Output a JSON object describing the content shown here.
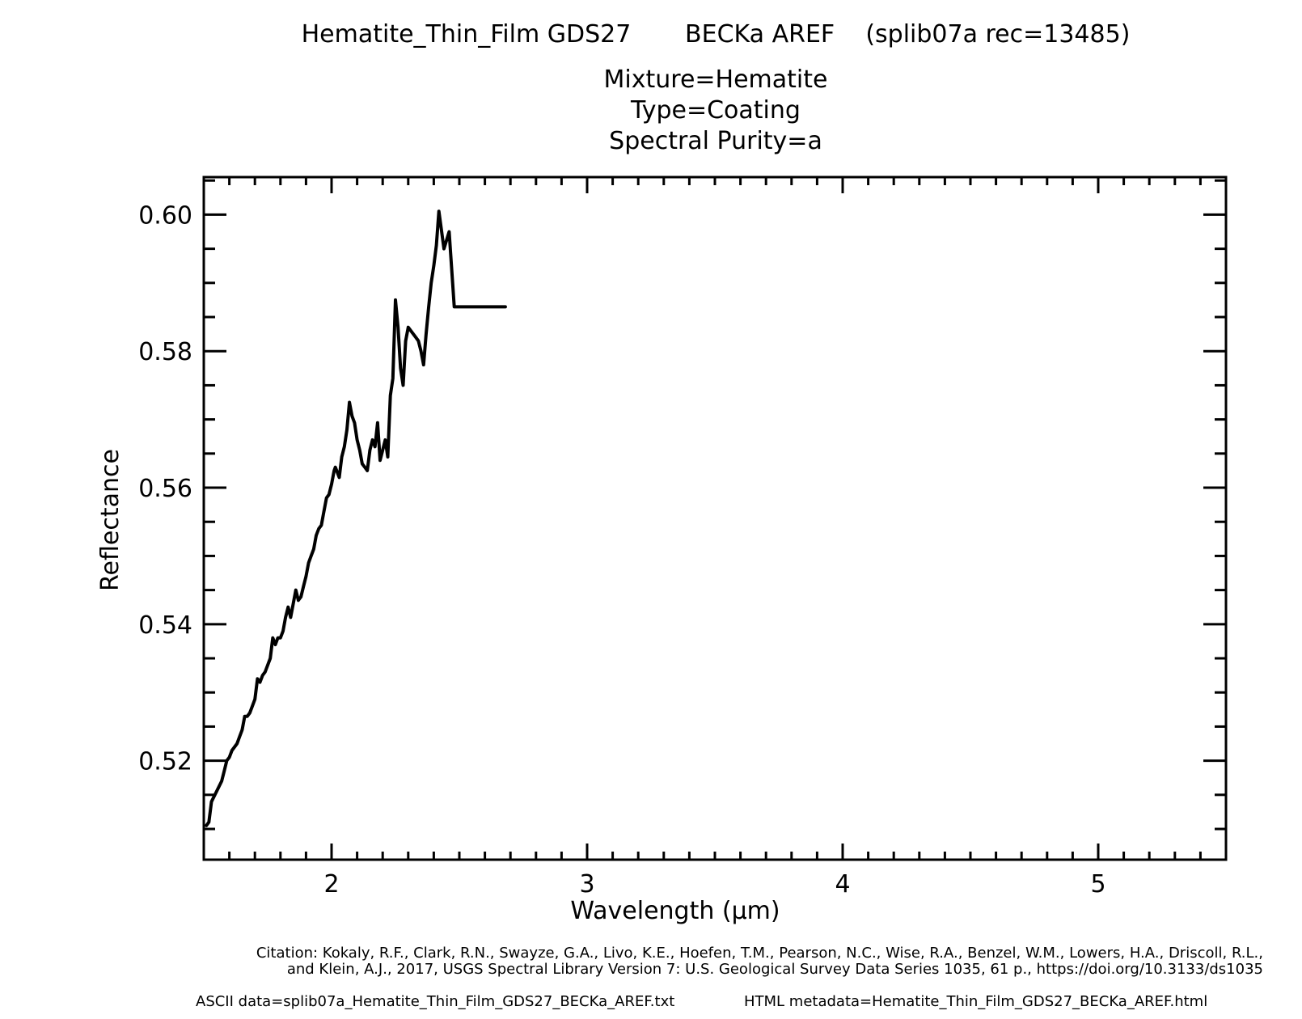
{
  "chart_data": {
    "type": "line",
    "title": "Hematite_Thin_Film GDS27       BECKa AREF    (splib07a rec=13485)",
    "subtitle_lines": [
      "Mixture=Hematite",
      "Type=Coating",
      "Spectral Purity=a"
    ],
    "xlabel": "Wavelength (μm)",
    "ylabel": "Reflectance",
    "xlim": [
      1.5,
      5.5
    ],
    "ylim": [
      0.5055,
      0.6055
    ],
    "x_ticks": [
      2,
      3,
      4,
      5
    ],
    "x_tick_labels": [
      "2",
      "3",
      "4",
      "5"
    ],
    "y_ticks": [
      0.52,
      0.54,
      0.56,
      0.58,
      0.6
    ],
    "y_tick_labels": [
      "0.52",
      "0.54",
      "0.56",
      "0.58",
      "0.60"
    ],
    "grid": false,
    "series": [
      {
        "color": "#000000",
        "x": [
          1.51,
          1.52,
          1.53,
          1.55,
          1.57,
          1.58,
          1.59,
          1.6,
          1.61,
          1.63,
          1.64,
          1.65,
          1.66,
          1.67,
          1.68,
          1.7,
          1.71,
          1.72,
          1.73,
          1.74,
          1.75,
          1.76,
          1.77,
          1.78,
          1.79,
          1.8,
          1.81,
          1.82,
          1.83,
          1.84,
          1.85,
          1.86,
          1.87,
          1.88,
          1.89,
          1.9,
          1.91,
          1.92,
          1.93,
          1.94,
          1.95,
          1.96,
          1.97,
          1.98,
          1.99,
          2.0,
          2.01,
          2.015,
          2.02,
          2.03,
          2.04,
          2.05,
          2.06,
          2.07,
          2.08,
          2.09,
          2.1,
          2.11,
          2.12,
          2.13,
          2.14,
          2.15,
          2.16,
          2.17,
          2.18,
          2.19,
          2.2,
          2.21,
          2.22,
          2.23,
          2.24,
          2.25,
          2.26,
          2.27,
          2.28,
          2.29,
          2.3,
          2.31,
          2.32,
          2.33,
          2.34,
          2.35,
          2.36,
          2.37,
          2.38,
          2.39,
          2.4,
          2.41,
          2.42,
          2.44,
          2.46,
          2.48,
          2.5,
          2.52,
          2.55,
          2.58,
          2.6,
          2.62,
          2.64,
          2.66,
          2.68
        ],
        "y": [
          0.5105,
          0.511,
          0.514,
          0.5155,
          0.517,
          0.5185,
          0.52,
          0.5205,
          0.5215,
          0.5225,
          0.5235,
          0.5245,
          0.5265,
          0.5265,
          0.527,
          0.529,
          0.532,
          0.5315,
          0.5325,
          0.533,
          0.534,
          0.535,
          0.538,
          0.537,
          0.538,
          0.538,
          0.539,
          0.541,
          0.5425,
          0.541,
          0.543,
          0.545,
          0.5435,
          0.544,
          0.5455,
          0.547,
          0.549,
          0.55,
          0.551,
          0.553,
          0.554,
          0.5545,
          0.5565,
          0.5585,
          0.559,
          0.5605,
          0.5625,
          0.563,
          0.5625,
          0.5615,
          0.5645,
          0.566,
          0.5685,
          0.5725,
          0.5705,
          0.5695,
          0.567,
          0.5655,
          0.5635,
          0.563,
          0.5625,
          0.5655,
          0.567,
          0.566,
          0.5695,
          0.564,
          0.5655,
          0.567,
          0.5645,
          0.5735,
          0.576,
          0.5875,
          0.5835,
          0.5775,
          0.575,
          0.5815,
          0.5835,
          0.583,
          0.5825,
          0.582,
          0.5815,
          0.58,
          0.578,
          0.5825,
          0.5865,
          0.59,
          0.5925,
          0.5955,
          0.6005,
          0.595,
          0.5975,
          0.5865,
          0.5865,
          0.5865,
          0.5865,
          0.5865,
          0.5865,
          0.5865,
          0.5865,
          0.5865,
          0.5865
        ]
      }
    ]
  },
  "footer": {
    "citation_line1": "Citation: Kokaly, R.F., Clark, R.N., Swayze, G.A., Livo, K.E., Hoefen, T.M., Pearson, N.C., Wise, R.A., Benzel, W.M., Lowers, H.A., Driscoll, R.L.,",
    "citation_line2": "and Klein, A.J., 2017, USGS Spectral Library Version 7: U.S. Geological Survey Data Series 1035, 61 p., https://doi.org/10.3133/ds1035",
    "ascii_data": "ASCII data=splib07a_Hematite_Thin_Film_GDS27_BECKa_AREF.txt",
    "html_metadata": "HTML metadata=Hematite_Thin_Film_GDS27_BECKa_AREF.html"
  }
}
